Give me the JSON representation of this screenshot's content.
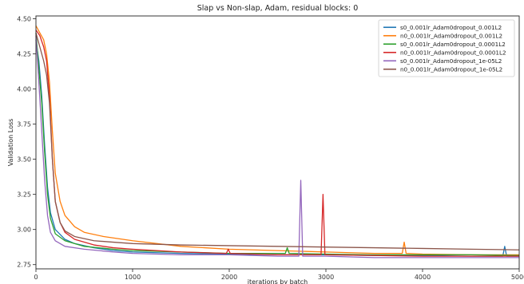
{
  "chart_data": {
    "type": "line",
    "title": "Slap vs Non-slap, Adam, residual blocks: 0",
    "xlabel": "iterations by batch",
    "ylabel": "Validation Loss",
    "xlim": [
      0,
      5000
    ],
    "ylim": [
      2.72,
      4.52
    ],
    "xticks": [
      0,
      1000,
      2000,
      3000,
      4000,
      5000
    ],
    "yticks": [
      2.75,
      3.0,
      3.25,
      3.5,
      3.75,
      4.0,
      4.25,
      4.5
    ],
    "grid": false,
    "legend_position": "top-right",
    "series": [
      {
        "name": "s0_0.001lr_Adam0dropout_0.001L2",
        "color": "#1f77b4",
        "points": [
          [
            0,
            4.35
          ],
          [
            30,
            4.2
          ],
          [
            60,
            3.95
          ],
          [
            90,
            3.6
          ],
          [
            120,
            3.3
          ],
          [
            150,
            3.12
          ],
          [
            200,
            3.0
          ],
          [
            300,
            2.93
          ],
          [
            400,
            2.9
          ],
          [
            600,
            2.87
          ],
          [
            800,
            2.85
          ],
          [
            1000,
            2.84
          ],
          [
            1500,
            2.83
          ],
          [
            2000,
            2.825
          ],
          [
            2500,
            2.82
          ],
          [
            3000,
            2.82
          ],
          [
            3500,
            2.815
          ],
          [
            4000,
            2.815
          ],
          [
            4500,
            2.81
          ],
          [
            4830,
            2.81
          ],
          [
            4850,
            2.88
          ],
          [
            4870,
            2.81
          ],
          [
            5000,
            2.81
          ]
        ]
      },
      {
        "name": "n0_0.001lr_Adam0dropout_0.001L2",
        "color": "#ff7f0e",
        "points": [
          [
            0,
            4.45
          ],
          [
            40,
            4.4
          ],
          [
            80,
            4.35
          ],
          [
            110,
            4.25
          ],
          [
            140,
            4.05
          ],
          [
            170,
            3.7
          ],
          [
            200,
            3.4
          ],
          [
            250,
            3.2
          ],
          [
            300,
            3.1
          ],
          [
            400,
            3.02
          ],
          [
            500,
            2.98
          ],
          [
            700,
            2.95
          ],
          [
            1000,
            2.92
          ],
          [
            1500,
            2.88
          ],
          [
            2000,
            2.86
          ],
          [
            2500,
            2.85
          ],
          [
            3000,
            2.84
          ],
          [
            3500,
            2.83
          ],
          [
            3790,
            2.83
          ],
          [
            3810,
            2.91
          ],
          [
            3830,
            2.83
          ],
          [
            4000,
            2.825
          ],
          [
            4500,
            2.82
          ],
          [
            5000,
            2.82
          ]
        ]
      },
      {
        "name": "s0_0.001lr_Adam0dropout_0.0001L2",
        "color": "#2ca02c",
        "points": [
          [
            0,
            4.4
          ],
          [
            30,
            4.15
          ],
          [
            60,
            3.9
          ],
          [
            90,
            3.55
          ],
          [
            120,
            3.25
          ],
          [
            150,
            3.08
          ],
          [
            200,
            2.97
          ],
          [
            300,
            2.92
          ],
          [
            500,
            2.88
          ],
          [
            800,
            2.86
          ],
          [
            1000,
            2.85
          ],
          [
            1500,
            2.84
          ],
          [
            2000,
            2.83
          ],
          [
            2500,
            2.83
          ],
          [
            2580,
            2.83
          ],
          [
            2600,
            2.87
          ],
          [
            2620,
            2.83
          ],
          [
            3000,
            2.825
          ],
          [
            3500,
            2.82
          ],
          [
            4000,
            2.82
          ],
          [
            4500,
            2.82
          ],
          [
            5000,
            2.815
          ]
        ]
      },
      {
        "name": "n0_0.001lr_Adam0dropout_0.0001L2",
        "color": "#d62728",
        "points": [
          [
            0,
            4.42
          ],
          [
            40,
            4.38
          ],
          [
            80,
            4.3
          ],
          [
            110,
            4.2
          ],
          [
            140,
            3.95
          ],
          [
            170,
            3.5
          ],
          [
            200,
            3.2
          ],
          [
            250,
            3.05
          ],
          [
            300,
            2.98
          ],
          [
            400,
            2.93
          ],
          [
            600,
            2.89
          ],
          [
            800,
            2.87
          ],
          [
            1000,
            2.86
          ],
          [
            1500,
            2.84
          ],
          [
            1970,
            2.83
          ],
          [
            1990,
            2.86
          ],
          [
            2010,
            2.83
          ],
          [
            2500,
            2.82
          ],
          [
            2950,
            2.82
          ],
          [
            2970,
            3.25
          ],
          [
            2990,
            2.82
          ],
          [
            3500,
            2.815
          ],
          [
            4000,
            2.81
          ],
          [
            4500,
            2.81
          ],
          [
            5000,
            2.81
          ]
        ]
      },
      {
        "name": "s0_0.001lr_Adam0dropout_1e-05L2",
        "color": "#9467bd",
        "points": [
          [
            0,
            4.38
          ],
          [
            30,
            4.05
          ],
          [
            60,
            3.7
          ],
          [
            90,
            3.35
          ],
          [
            120,
            3.1
          ],
          [
            150,
            2.98
          ],
          [
            200,
            2.92
          ],
          [
            300,
            2.88
          ],
          [
            500,
            2.86
          ],
          [
            800,
            2.84
          ],
          [
            1000,
            2.83
          ],
          [
            1500,
            2.82
          ],
          [
            2000,
            2.82
          ],
          [
            2500,
            2.81
          ],
          [
            2720,
            2.81
          ],
          [
            2740,
            3.35
          ],
          [
            2760,
            2.81
          ],
          [
            3000,
            2.81
          ],
          [
            3500,
            2.8
          ],
          [
            4000,
            2.8
          ],
          [
            4500,
            2.8
          ],
          [
            5000,
            2.8
          ]
        ]
      },
      {
        "name": "n0_0.001lr_Adam0dropout_1e-05L2",
        "color": "#8c564b",
        "points": [
          [
            0,
            4.4
          ],
          [
            40,
            4.3
          ],
          [
            80,
            4.2
          ],
          [
            110,
            4.1
          ],
          [
            140,
            3.9
          ],
          [
            170,
            3.5
          ],
          [
            200,
            3.2
          ],
          [
            250,
            3.05
          ],
          [
            300,
            2.99
          ],
          [
            400,
            2.95
          ],
          [
            600,
            2.92
          ],
          [
            800,
            2.91
          ],
          [
            1000,
            2.9
          ],
          [
            1500,
            2.89
          ],
          [
            2000,
            2.885
          ],
          [
            2500,
            2.88
          ],
          [
            3000,
            2.875
          ],
          [
            3500,
            2.87
          ],
          [
            4000,
            2.865
          ],
          [
            4500,
            2.86
          ],
          [
            5000,
            2.855
          ]
        ]
      }
    ]
  }
}
